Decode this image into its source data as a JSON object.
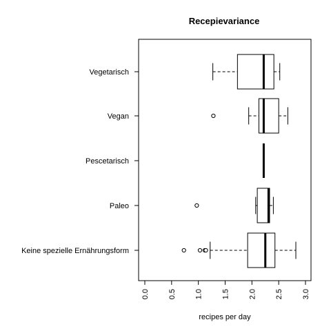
{
  "chart_data": {
    "type": "boxplot",
    "orientation": "horizontal",
    "title": "Recepievariance",
    "xlabel": "recipes per day",
    "ylabel": "",
    "xlim": [
      0,
      3
    ],
    "x_ticks": [
      "0.0",
      "0.5",
      "1.0",
      "1.5",
      "2.0",
      "2.5",
      "3.0"
    ],
    "grid": false,
    "series": [
      {
        "name": "Vegetarisch",
        "whisker_low": 1.27,
        "q1": 1.73,
        "median": 2.22,
        "q3": 2.41,
        "whisker_high": 2.52,
        "outliers": []
      },
      {
        "name": "Vegan",
        "whisker_low": 1.94,
        "q1": 2.13,
        "median": 2.22,
        "q3": 2.5,
        "whisker_high": 2.67,
        "outliers": [
          1.28
        ]
      },
      {
        "name": "Pescetarisch",
        "whisker_low": 2.22,
        "q1": 2.22,
        "median": 2.22,
        "q3": 2.22,
        "whisker_high": 2.22,
        "outliers": []
      },
      {
        "name": "Paleo",
        "whisker_low": 2.07,
        "q1": 2.1,
        "median": 2.31,
        "q3": 2.33,
        "whisker_high": 2.4,
        "outliers": [
          0.97
        ]
      },
      {
        "name": "Keine spezielle Ernährungsform",
        "whisker_low": 1.22,
        "q1": 1.92,
        "median": 2.25,
        "q3": 2.43,
        "whisker_high": 2.82,
        "outliers": [
          0.73,
          1.03,
          1.12,
          1.14
        ]
      }
    ]
  }
}
